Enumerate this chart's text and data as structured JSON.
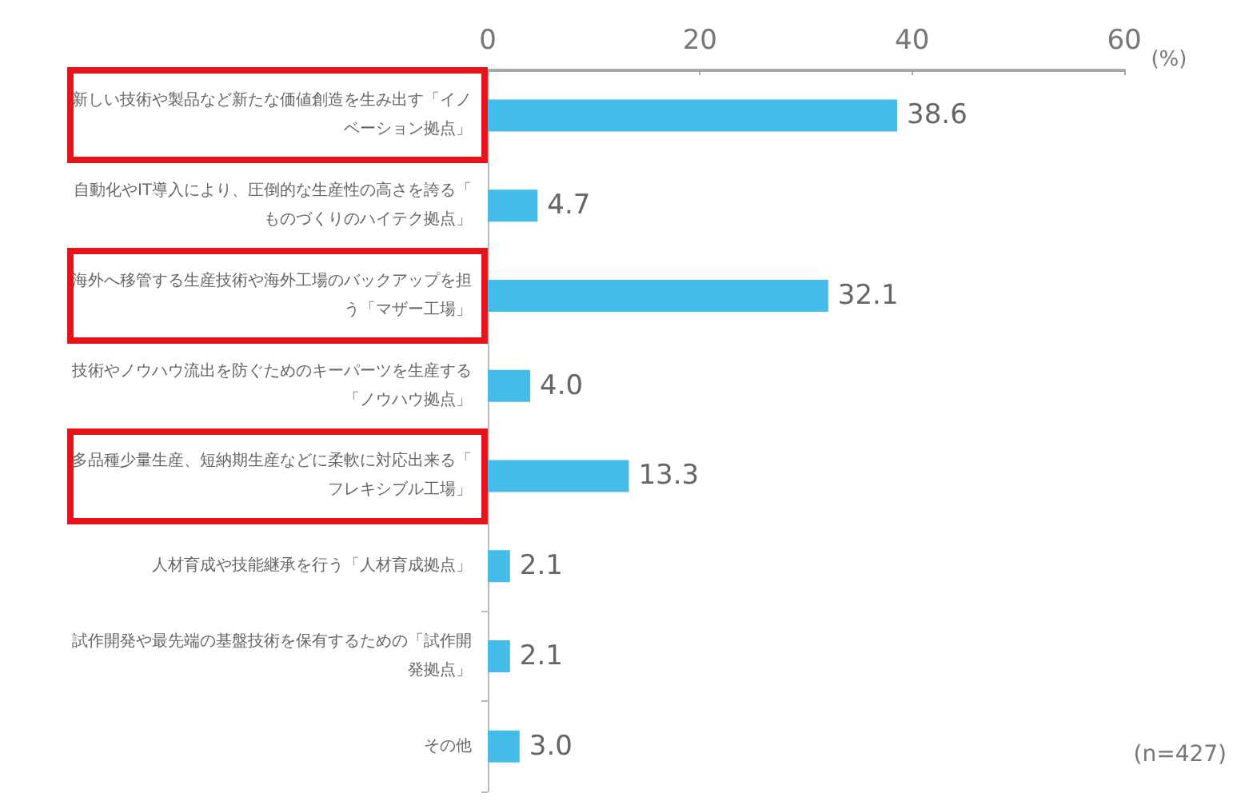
{
  "chart_data": {
    "type": "bar",
    "orientation": "horizontal",
    "categories": [
      "新しい技術や製品など新たな価値創造を生み出す「イノベーション拠点」",
      "自動化やIT導入により、圧倒的な生産性の高さを誇る「ものづくりのハイテク拠点」",
      "海外へ移管する生産技術や海外工場のバックアップを担う「マザー工場」",
      "技術やノウハウ流出を防ぐためのキーパーツを生産する「ノウハウ拠点」",
      "多品種少量生産、短納期生産などに柔軟に対応出来る「フレキシブル工場」",
      "人材育成や技能継承を行う「人材育成拠点」",
      "試作開発や最先端の基盤技術を保有するための「試作開発拠点」",
      "その他"
    ],
    "values": [
      38.6,
      4.7,
      32.1,
      4.0,
      13.3,
      2.1,
      2.1,
      3.0
    ],
    "color": "#45bce8",
    "xlim": [
      0,
      60
    ],
    "xticks": [
      0,
      20,
      40,
      60
    ],
    "xlabel": "(%)",
    "value_labels": [
      "38.6",
      "4.7",
      "32.1",
      "4.0",
      "13.3",
      "2.1",
      "2.1",
      "3.0"
    ],
    "grid": false,
    "annotations": [
      "(n=427)"
    ]
  }
}
